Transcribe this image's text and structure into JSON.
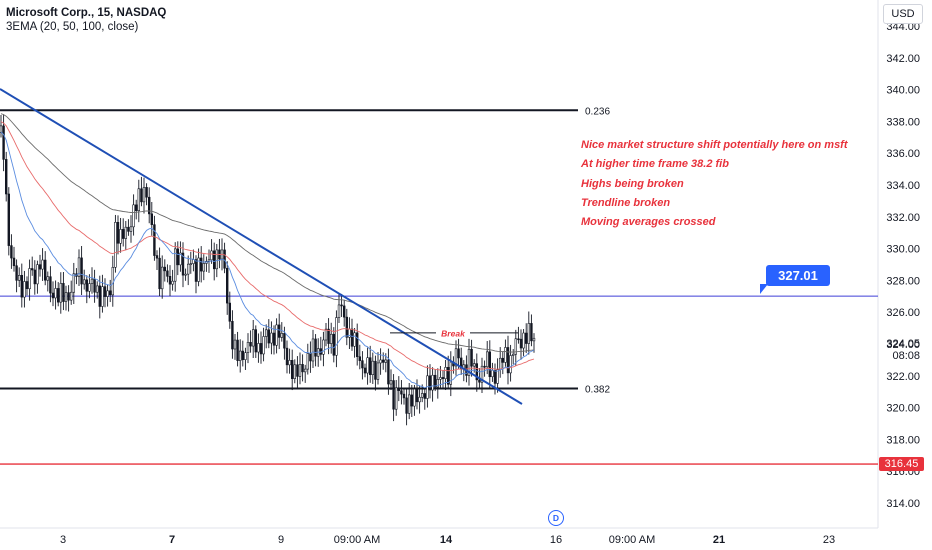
{
  "header": {
    "title": "Microsoft Corp., 15, NASDAQ",
    "indicator": "3EMA (20, 50, 100, close)",
    "currency_button": "USD"
  },
  "annotations": {
    "notes": [
      "Nice market structure shift potentially here on msft",
      "At higher time frame 38.2 fib",
      "Highs being broken",
      "Trendline broken",
      "Moving averages crossed"
    ],
    "break_label": "Break",
    "price_badge": "327.01",
    "fib_levels": [
      {
        "label": "0.236",
        "price": 338.7
      },
      {
        "label": "0.382",
        "price": 321.2
      }
    ]
  },
  "price_axis": {
    "last_price": "324.05",
    "countdown": "08:08",
    "red_line_label": "316.45"
  },
  "colors": {
    "candles": "#131722",
    "trendline": "#1f4fb5",
    "ema20": "#5b8de0",
    "ema50": "#e86b6b",
    "ema100": "#6b6b6b",
    "horizontal_blue": "#3f3fd6",
    "horizontal_red": "#e8323c",
    "notes": "#e8323c",
    "badge": "#2962ff"
  },
  "chart_data": {
    "type": "candlestick",
    "title": "Microsoft Corp., 15, NASDAQ",
    "y_axis": {
      "ticks": [
        "344.00",
        "342.00",
        "340.00",
        "338.00",
        "336.00",
        "334.00",
        "332.00",
        "330.00",
        "328.00",
        "326.00",
        "324.00",
        "322.00",
        "320.00",
        "318.00",
        "316.00",
        "314.00"
      ],
      "ylim": [
        313,
        345.5
      ]
    },
    "x_axis": {
      "ticks": [
        {
          "label": "3",
          "bold": false
        },
        {
          "label": "7",
          "bold": true
        },
        {
          "label": "9",
          "bold": false
        },
        {
          "label": "09:00 AM",
          "bold": false
        },
        {
          "label": "14",
          "bold": true
        },
        {
          "label": "16",
          "bold": false
        },
        {
          "label": "09:00 AM",
          "bold": false
        },
        {
          "label": "21",
          "bold": true
        },
        {
          "label": "23",
          "bold": false
        }
      ]
    },
    "close_path": [
      [
        0,
        337.3
      ],
      [
        3,
        336.5
      ],
      [
        6,
        333
      ],
      [
        9,
        330.5
      ],
      [
        12,
        329.5
      ],
      [
        15,
        328.5
      ],
      [
        20,
        327.3
      ],
      [
        25,
        327.8
      ],
      [
        30,
        328.6
      ],
      [
        35,
        327.8
      ],
      [
        40,
        329.6
      ],
      [
        45,
        328.3
      ],
      [
        50,
        327.1
      ],
      [
        55,
        327.5
      ],
      [
        60,
        327.0
      ],
      [
        65,
        326.8
      ],
      [
        70,
        327.4
      ],
      [
        75,
        328.2
      ],
      [
        80,
        328.8
      ],
      [
        85,
        327.8
      ],
      [
        90,
        327.5
      ],
      [
        95,
        327.6
      ],
      [
        100,
        327.2
      ],
      [
        105,
        327.0
      ],
      [
        110,
        326.9
      ],
      [
        115,
        331.5
      ],
      [
        120,
        330.2
      ],
      [
        125,
        331.3
      ],
      [
        130,
        331.5
      ],
      [
        135,
        332.3
      ],
      [
        140,
        333.5
      ],
      [
        143,
        334.0
      ],
      [
        147,
        333.2
      ],
      [
        150,
        331.5
      ],
      [
        155,
        330.0
      ],
      [
        160,
        328.0
      ],
      [
        165,
        328.5
      ],
      [
        170,
        327.8
      ],
      [
        175,
        329.5
      ],
      [
        180,
        329.0
      ],
      [
        185,
        328.5
      ],
      [
        190,
        329.5
      ],
      [
        195,
        328.0
      ],
      [
        200,
        329.5
      ],
      [
        205,
        328.8
      ],
      [
        210,
        329.3
      ],
      [
        215,
        329.6
      ],
      [
        220,
        329.8
      ],
      [
        225,
        328.5
      ],
      [
        228,
        326.2
      ],
      [
        232,
        324.5
      ],
      [
        236,
        323.2
      ],
      [
        240,
        323.0
      ],
      [
        245,
        323.8
      ],
      [
        250,
        324.0
      ],
      [
        255,
        324.1
      ],
      [
        260,
        323.8
      ],
      [
        265,
        324.5
      ],
      [
        270,
        324.1
      ],
      [
        275,
        325.0
      ],
      [
        280,
        324.5
      ],
      [
        285,
        323.5
      ],
      [
        290,
        322.8
      ],
      [
        295,
        321.8
      ],
      [
        300,
        322.5
      ],
      [
        305,
        322.8
      ],
      [
        310,
        323.0
      ],
      [
        315,
        324.0
      ],
      [
        320,
        323.5
      ],
      [
        325,
        324.3
      ],
      [
        330,
        324.5
      ],
      [
        335,
        324.0
      ],
      [
        338,
        326.5
      ],
      [
        341,
        326.2
      ],
      [
        345,
        325.5
      ],
      [
        350,
        324.5
      ],
      [
        355,
        323.8
      ],
      [
        360,
        323.0
      ],
      [
        365,
        322.5
      ],
      [
        370,
        322.3
      ],
      [
        375,
        322.5
      ],
      [
        380,
        323.0
      ],
      [
        385,
        322.5
      ],
      [
        390,
        322.0
      ],
      [
        393,
        320.5
      ],
      [
        397,
        320.7
      ],
      [
        400,
        321.0
      ],
      [
        405,
        320.5
      ],
      [
        410,
        320.2
      ],
      [
        415,
        320.5
      ],
      [
        420,
        321.0
      ],
      [
        425,
        320.8
      ],
      [
        430,
        321.5
      ],
      [
        435,
        322.0
      ],
      [
        440,
        321.5
      ],
      [
        445,
        322.0
      ],
      [
        450,
        322.5
      ],
      [
        455,
        323.2
      ],
      [
        460,
        322.8
      ],
      [
        465,
        322.6
      ],
      [
        470,
        323.0
      ],
      [
        475,
        322.2
      ],
      [
        480,
        322.0
      ],
      [
        485,
        322.8
      ],
      [
        490,
        322.5
      ],
      [
        495,
        322.0
      ],
      [
        500,
        322.5
      ],
      [
        505,
        323.5
      ],
      [
        510,
        322.8
      ],
      [
        515,
        323.8
      ],
      [
        520,
        324.3
      ],
      [
        525,
        324.6
      ],
      [
        530,
        324.4
      ],
      [
        535,
        324.2
      ]
    ]
  }
}
